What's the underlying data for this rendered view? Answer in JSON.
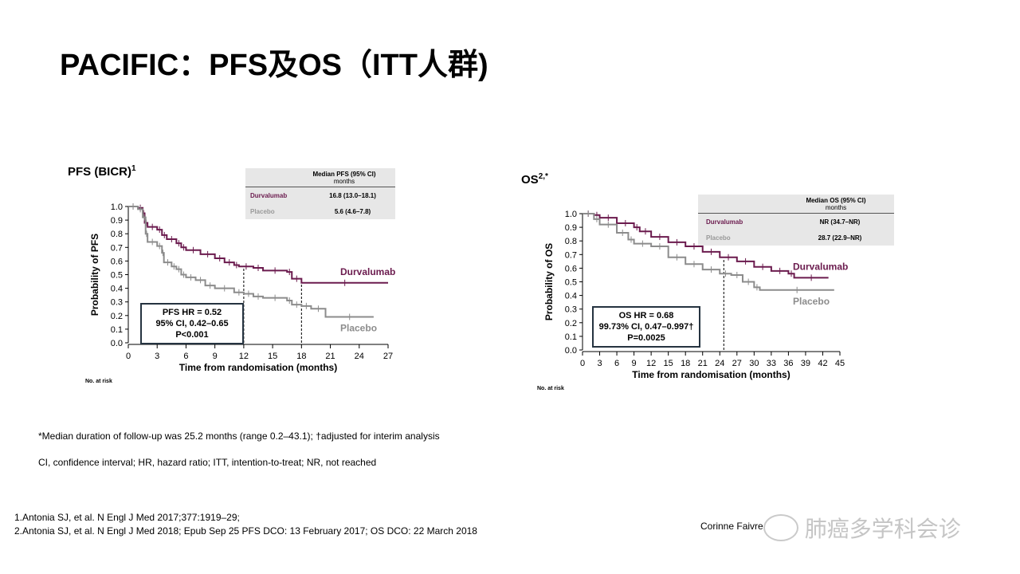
{
  "title": "PACIFIC：PFS及OS（ITT人群)",
  "colors": {
    "durvalumab": "#6b1b4e",
    "placebo": "#8c8c8c",
    "box_border": "#253340"
  },
  "pfs": {
    "title": "PFS (BICR)",
    "title_sup": "1",
    "table": {
      "header": "Median PFS (95% CI)",
      "header_sub": "months",
      "rows": [
        {
          "name": "Durvalumab",
          "value": "16.8 (13.0–18.1)"
        },
        {
          "name": "Placebo",
          "value": "5.6 (4.6–7.8)"
        }
      ]
    },
    "hr_box": [
      "PFS HR = 0.52",
      "95% CI, 0.42–0.65",
      "P<0.001"
    ],
    "no_at_risk": "No. at risk"
  },
  "os": {
    "title": "OS",
    "title_sup": "2,*",
    "table": {
      "header": "Median OS (95% CI)",
      "header_sub": "months",
      "rows": [
        {
          "name": "Durvalumab",
          "value": "NR (34.7–NR)"
        },
        {
          "name": "Placebo",
          "value": "28.7 (22.9–NR)"
        }
      ]
    },
    "hr_box": [
      "OS HR = 0.68",
      "99.73% CI, 0.47–0.997†",
      "P=0.0025"
    ],
    "no_at_risk": "No. at risk"
  },
  "chart_data": [
    {
      "type": "line",
      "title": "PFS (BICR)",
      "xlabel": "Time from randomisation (months)",
      "ylabel": "Probability of PFS",
      "xlim": [
        0,
        27
      ],
      "ylim": [
        0,
        1.0
      ],
      "xticks": [
        "0",
        "3",
        "6",
        "9",
        "12",
        "15",
        "18",
        "21",
        "24",
        "27"
      ],
      "yticks": [
        "0.0",
        "0.1",
        "0.2",
        "0.3",
        "0.4",
        "0.5",
        "0.6",
        "0.7",
        "0.8",
        "0.9",
        "1.0"
      ],
      "medians": [
        {
          "x": 12,
          "y": 0.555
        },
        {
          "x": 18,
          "y": 0.44
        }
      ],
      "series": [
        {
          "name": "Durvalumab",
          "label": "Durvalumab",
          "x": [
            0,
            1,
            1.5,
            1.7,
            2,
            3,
            3.5,
            4,
            5,
            5.5,
            6,
            7.5,
            9,
            10,
            11,
            11.5,
            13,
            14,
            16.5,
            17,
            18,
            27
          ],
          "y": [
            1,
            0.99,
            0.95,
            0.88,
            0.85,
            0.83,
            0.79,
            0.76,
            0.73,
            0.7,
            0.68,
            0.65,
            0.62,
            0.59,
            0.57,
            0.56,
            0.55,
            0.53,
            0.52,
            0.47,
            0.44,
            0.44
          ]
        },
        {
          "name": "Placebo",
          "label": "Placebo",
          "x": [
            0,
            1,
            1.5,
            1.8,
            2,
            3,
            3.5,
            3.7,
            4.5,
            5,
            5.5,
            6,
            7,
            8,
            9,
            11,
            12,
            13,
            14,
            16.5,
            17,
            18,
            19,
            20.5,
            25.5
          ],
          "y": [
            1,
            0.98,
            0.92,
            0.8,
            0.74,
            0.71,
            0.66,
            0.59,
            0.56,
            0.54,
            0.5,
            0.48,
            0.46,
            0.42,
            0.4,
            0.37,
            0.36,
            0.34,
            0.33,
            0.31,
            0.28,
            0.27,
            0.25,
            0.19,
            0.19
          ]
        }
      ]
    },
    {
      "type": "line",
      "title": "OS",
      "xlabel": "Time from randomisation (months)",
      "ylabel": "Probability of OS",
      "xlim": [
        0,
        45
      ],
      "ylim": [
        0,
        1.0
      ],
      "xticks": [
        "0",
        "3",
        "6",
        "9",
        "12",
        "15",
        "18",
        "21",
        "24",
        "27",
        "30",
        "33",
        "36",
        "39",
        "42",
        "45"
      ],
      "yticks": [
        "0.0",
        "0.1",
        "0.2",
        "0.3",
        "0.4",
        "0.5",
        "0.6",
        "0.7",
        "0.8",
        "0.9",
        "1.0"
      ],
      "medians": [
        {
          "x": 24.7,
          "y": 0.665
        }
      ],
      "series": [
        {
          "name": "Durvalumab",
          "label": "Durvalumab",
          "x": [
            0,
            2,
            3,
            6,
            9,
            10,
            12,
            15,
            18,
            21,
            24,
            27,
            30,
            33,
            36,
            37,
            43
          ],
          "y": [
            1,
            0.99,
            0.97,
            0.93,
            0.9,
            0.87,
            0.83,
            0.79,
            0.76,
            0.72,
            0.68,
            0.65,
            0.61,
            0.58,
            0.56,
            0.53,
            0.53
          ]
        },
        {
          "name": "Placebo",
          "label": "Placebo",
          "x": [
            0,
            2,
            3,
            6,
            8,
            9,
            12,
            15,
            18,
            21,
            24,
            26,
            28,
            30,
            31,
            44
          ],
          "y": [
            1,
            0.96,
            0.92,
            0.86,
            0.81,
            0.78,
            0.76,
            0.68,
            0.63,
            0.59,
            0.56,
            0.55,
            0.5,
            0.46,
            0.44,
            0.44
          ]
        }
      ]
    }
  ],
  "footnotes": [
    "*Median duration of follow-up was 25.2 months (range 0.2–43.1); †adjusted for interim analysis",
    "CI, confidence interval; HR, hazard ratio; ITT, intention-to-treat; NR, not reached"
  ],
  "references": [
    "1.Antonia SJ, et al. N Engl J Med 2017;377:1919–29;",
    "2.Antonia SJ, et al. N Engl J Med 2018; Epub Sep 25  PFS DCO: 13 February 2017; OS DCO: 22 March 2018"
  ],
  "citation": "Corinne Faivre",
  "watermark": "肺癌多学科会诊"
}
